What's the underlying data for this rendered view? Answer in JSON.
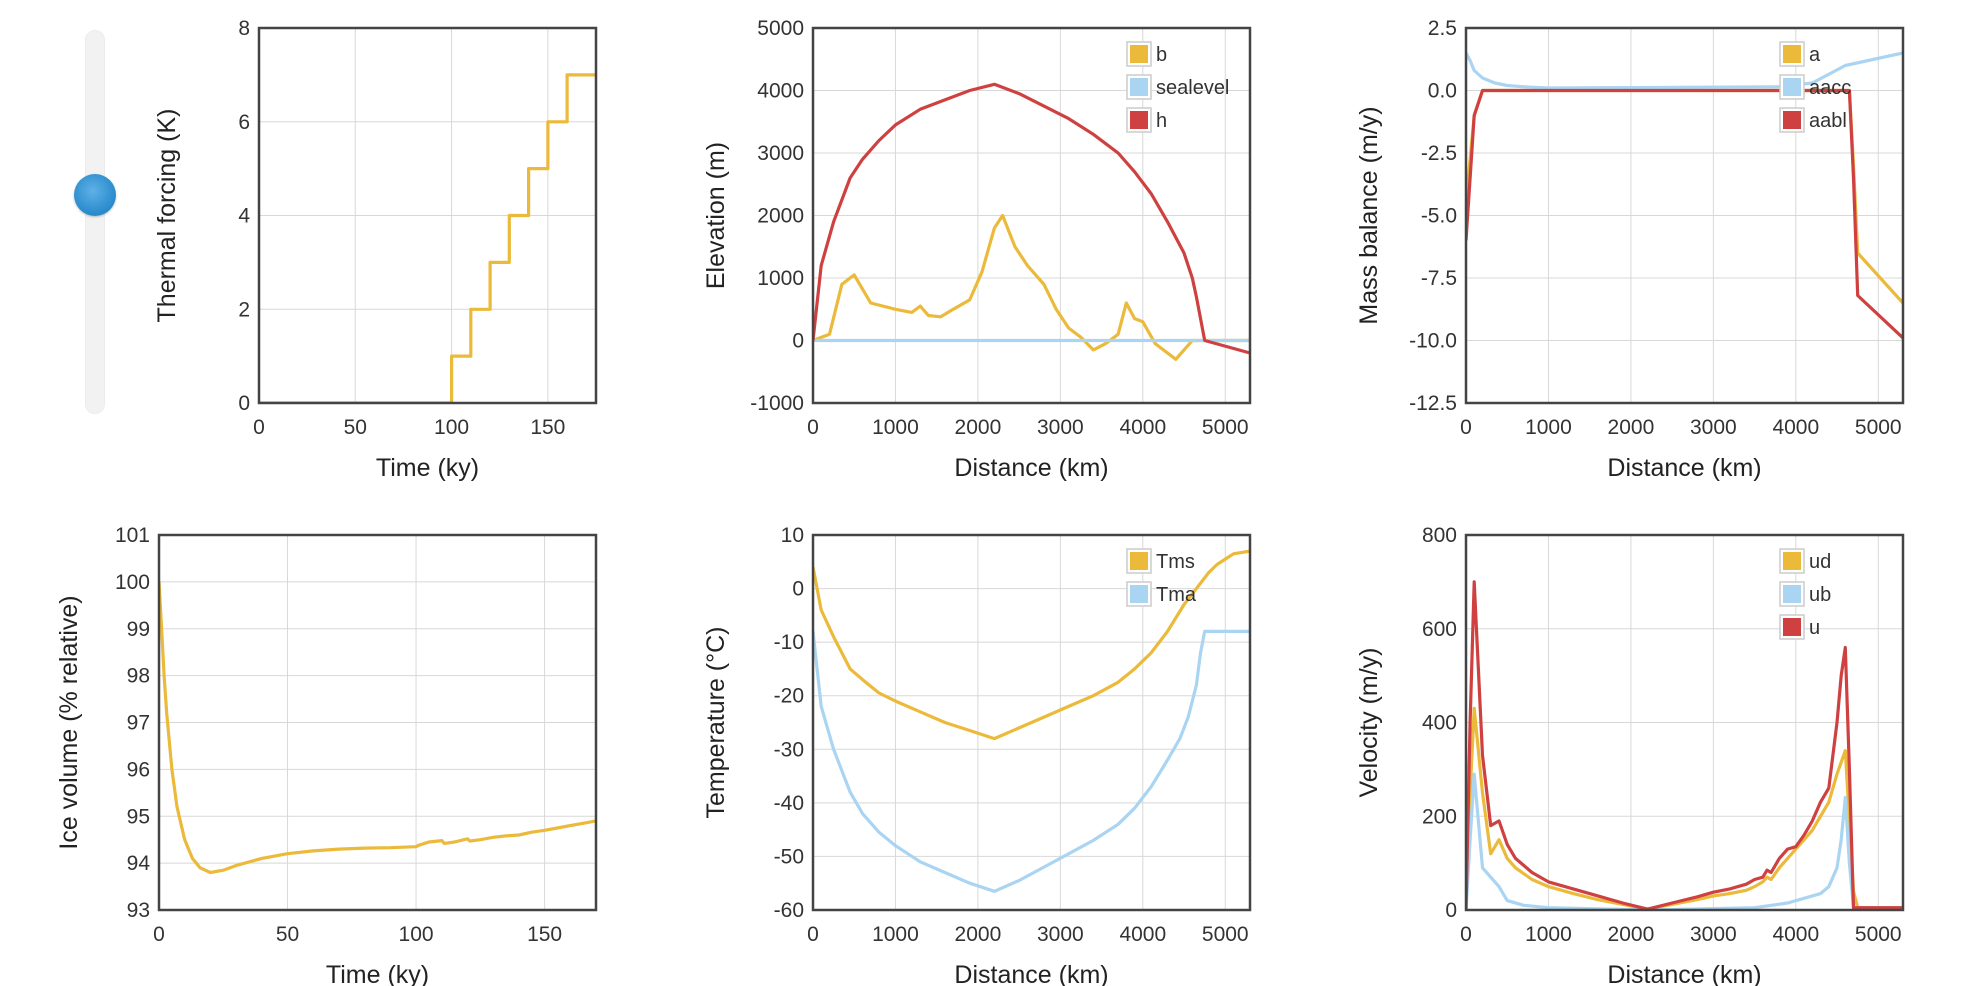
{
  "slider": {
    "value": 0.57
  },
  "colors": {
    "yellow": "#EBBA3A",
    "blue": "#A9D4F2",
    "red": "#CF4141"
  },
  "chart_data": [
    {
      "type": "line",
      "xlabel": "Time (ky)",
      "ylabel": "Thermal forcing (K)",
      "xlim": [
        0,
        175
      ],
      "ylim": [
        0,
        8
      ],
      "xticks": [
        0,
        50,
        100,
        150
      ],
      "yticks": [
        0,
        2,
        4,
        6,
        8
      ],
      "series": [
        {
          "color": "yellow",
          "x": [
            0,
            100,
            100,
            110,
            110,
            120,
            120,
            130,
            130,
            140,
            140,
            150,
            150,
            160,
            160,
            175
          ],
          "y": [
            0,
            0,
            1,
            1,
            2,
            2,
            3,
            3,
            4,
            4,
            5,
            5,
            6,
            6,
            7,
            7
          ]
        }
      ]
    },
    {
      "type": "line",
      "xlabel": "Distance (km)",
      "ylabel": "Elevation (m)",
      "xlim": [
        0,
        5300
      ],
      "ylim": [
        -1000,
        5000
      ],
      "xticks": [
        0,
        1000,
        2000,
        3000,
        4000,
        5000
      ],
      "yticks": [
        -1000,
        0,
        1000,
        2000,
        3000,
        4000,
        5000
      ],
      "legend": "top-right",
      "series": [
        {
          "name": "b",
          "color": "yellow",
          "x": [
            0,
            200,
            350,
            500,
            700,
            1000,
            1200,
            1300,
            1400,
            1550,
            1700,
            1900,
            2050,
            2200,
            2300,
            2450,
            2600,
            2800,
            2950,
            3100,
            3250,
            3400,
            3550,
            3700,
            3800,
            3900,
            4000,
            4150,
            4400,
            4600,
            5300
          ],
          "y": [
            0,
            100,
            900,
            1050,
            600,
            500,
            450,
            550,
            400,
            380,
            500,
            650,
            1100,
            1800,
            2000,
            1500,
            1200,
            900,
            500,
            200,
            50,
            -150,
            -50,
            100,
            600,
            350,
            300,
            -50,
            -300,
            0,
            0
          ]
        },
        {
          "name": "sealevel",
          "color": "blue",
          "x": [
            0,
            5300
          ],
          "y": [
            0,
            0
          ]
        },
        {
          "name": "h",
          "color": "red",
          "x": [
            0,
            100,
            250,
            450,
            600,
            800,
            1000,
            1300,
            1600,
            1900,
            2200,
            2500,
            2800,
            3100,
            3400,
            3700,
            3900,
            4100,
            4300,
            4500,
            4600,
            4650,
            4750,
            5300
          ],
          "y": [
            0,
            1200,
            1900,
            2600,
            2900,
            3200,
            3450,
            3700,
            3850,
            4000,
            4100,
            3950,
            3750,
            3550,
            3300,
            3000,
            2700,
            2350,
            1900,
            1400,
            1000,
            700,
            0,
            -200
          ]
        }
      ]
    },
    {
      "type": "line",
      "xlabel": "Distance (km)",
      "ylabel": "Mass balance (m/y)",
      "xlim": [
        0,
        5300
      ],
      "ylim": [
        -12.5,
        2.5
      ],
      "xticks": [
        0,
        1000,
        2000,
        3000,
        4000,
        5000
      ],
      "yticks": [
        -12.5,
        -10.0,
        -7.5,
        -5.0,
        -2.5,
        0.0,
        2.5
      ],
      "legend": "top-right",
      "series": [
        {
          "name": "a",
          "color": "yellow",
          "x": [
            0,
            100,
            200,
            4650,
            4700,
            4750,
            5300
          ],
          "y": [
            -4.5,
            -1,
            0,
            0,
            -3,
            -6.5,
            -8.5
          ]
        },
        {
          "name": "aacc",
          "color": "blue",
          "x": [
            0,
            50,
            100,
            200,
            350,
            500,
            700,
            1000,
            3800,
            4200,
            4600,
            5300
          ],
          "y": [
            1.5,
            1.2,
            0.8,
            0.5,
            0.3,
            0.2,
            0.15,
            0.1,
            0.15,
            0.3,
            1.0,
            1.5
          ]
        },
        {
          "name": "aabl",
          "color": "red",
          "x": [
            0,
            100,
            200,
            4650,
            4700,
            4750,
            5300
          ],
          "y": [
            -6,
            -1,
            0,
            0,
            -3.5,
            -8.2,
            -9.9
          ]
        }
      ]
    },
    {
      "type": "line",
      "xlabel": "Time (ky)",
      "ylabel": "Ice volume (% relative)",
      "xlim": [
        0,
        170
      ],
      "ylim": [
        93,
        101
      ],
      "xticks": [
        0,
        50,
        100,
        150
      ],
      "yticks": [
        93,
        94,
        95,
        96,
        97,
        98,
        99,
        100,
        101
      ],
      "series": [
        {
          "color": "yellow",
          "x": [
            0,
            1,
            2,
            3,
            5,
            7,
            10,
            13,
            16,
            20,
            25,
            30,
            40,
            50,
            60,
            70,
            80,
            90,
            100,
            101,
            105,
            110,
            111,
            115,
            120,
            121,
            125,
            130,
            135,
            140,
            145,
            150,
            155,
            160,
            165,
            170
          ],
          "y": [
            100,
            99,
            98,
            97.2,
            96,
            95.2,
            94.5,
            94.1,
            93.9,
            93.8,
            93.85,
            93.95,
            94.1,
            94.2,
            94.26,
            94.3,
            94.32,
            94.33,
            94.35,
            94.38,
            94.45,
            94.48,
            94.42,
            94.45,
            94.52,
            94.47,
            94.5,
            94.55,
            94.58,
            94.6,
            94.66,
            94.7,
            94.75,
            94.8,
            94.85,
            94.9
          ]
        }
      ]
    },
    {
      "type": "line",
      "xlabel": "Distance (km)",
      "ylabel": "Temperature (°C)",
      "xlim": [
        0,
        5300
      ],
      "ylim": [
        -60,
        10
      ],
      "xticks": [
        0,
        1000,
        2000,
        3000,
        4000,
        5000
      ],
      "yticks": [
        -60,
        -50,
        -40,
        -30,
        -20,
        -10,
        0,
        10
      ],
      "legend": "top-right",
      "series": [
        {
          "name": "Tms",
          "color": "yellow",
          "x": [
            0,
            100,
            250,
            450,
            600,
            800,
            1000,
            1300,
            1600,
            1900,
            2200,
            2500,
            2800,
            3100,
            3400,
            3700,
            3900,
            4100,
            4300,
            4500,
            4700,
            4800,
            4900,
            5000,
            5100,
            5300
          ],
          "y": [
            4,
            -4,
            -9,
            -15,
            -17,
            -19.5,
            -21,
            -23,
            -25,
            -26.5,
            -28,
            -26,
            -24,
            -22,
            -20,
            -17.5,
            -15,
            -12,
            -8,
            -3,
            1,
            3,
            4.5,
            5.5,
            6.5,
            7
          ]
        },
        {
          "name": "Tma",
          "color": "blue",
          "x": [
            0,
            100,
            250,
            450,
            600,
            800,
            1000,
            1300,
            1600,
            1900,
            2200,
            2500,
            2800,
            3100,
            3400,
            3700,
            3900,
            4100,
            4300,
            4450,
            4550,
            4650,
            4700,
            4750,
            4800,
            5300
          ],
          "y": [
            -8,
            -22,
            -30,
            -38,
            -42,
            -45.5,
            -48,
            -51,
            -53,
            -55,
            -56.5,
            -54.5,
            -52,
            -49.5,
            -47,
            -44,
            -41,
            -37,
            -32,
            -28,
            -24,
            -18,
            -12,
            -8,
            -8,
            -8
          ]
        }
      ]
    },
    {
      "type": "line",
      "xlabel": "Distance (km)",
      "ylabel": "Velocity (m/y)",
      "xlim": [
        0,
        5300
      ],
      "ylim": [
        0,
        800
      ],
      "xticks": [
        0,
        1000,
        2000,
        3000,
        4000,
        5000
      ],
      "yticks": [
        0,
        200,
        400,
        600,
        800
      ],
      "legend": "top-right",
      "series": [
        {
          "name": "ud",
          "color": "yellow",
          "x": [
            0,
            50,
            100,
            200,
            300,
            400,
            500,
            600,
            800,
            1000,
            1300,
            1600,
            1900,
            2200,
            2500,
            2800,
            3000,
            3200,
            3400,
            3500,
            3600,
            3650,
            3700,
            3800,
            3900,
            4000,
            4100,
            4200,
            4300,
            4400,
            4500,
            4600,
            4700,
            4750,
            4800,
            5300
          ],
          "y": [
            0,
            250,
            430,
            250,
            120,
            150,
            110,
            90,
            65,
            50,
            35,
            22,
            12,
            2,
            12,
            22,
            30,
            35,
            42,
            50,
            60,
            70,
            65,
            90,
            110,
            130,
            150,
            170,
            200,
            230,
            290,
            340,
            40,
            5,
            5,
            5
          ]
        },
        {
          "name": "ub",
          "color": "blue",
          "x": [
            0,
            50,
            100,
            200,
            300,
            400,
            500,
            700,
            1000,
            2200,
            3500,
            3900,
            4100,
            4300,
            4400,
            4500,
            4550,
            4600,
            4650,
            4700,
            5300
          ],
          "y": [
            0,
            150,
            290,
            90,
            70,
            50,
            20,
            10,
            5,
            0,
            5,
            15,
            25,
            35,
            50,
            90,
            150,
            240,
            100,
            5,
            5
          ]
        },
        {
          "name": "u",
          "color": "red",
          "x": [
            0,
            50,
            100,
            200,
            300,
            400,
            500,
            600,
            800,
            1000,
            1300,
            1600,
            1900,
            2200,
            2500,
            2800,
            3000,
            3200,
            3400,
            3500,
            3600,
            3650,
            3700,
            3800,
            3900,
            4000,
            4100,
            4200,
            4300,
            4400,
            4500,
            4550,
            4600,
            4650,
            4700,
            4750,
            5300
          ],
          "y": [
            0,
            400,
            700,
            330,
            180,
            190,
            140,
            110,
            80,
            60,
            45,
            30,
            15,
            2,
            15,
            28,
            38,
            45,
            55,
            65,
            70,
            85,
            80,
            110,
            130,
            135,
            160,
            190,
            230,
            260,
            400,
            500,
            560,
            300,
            5,
            5,
            5
          ]
        }
      ]
    }
  ]
}
